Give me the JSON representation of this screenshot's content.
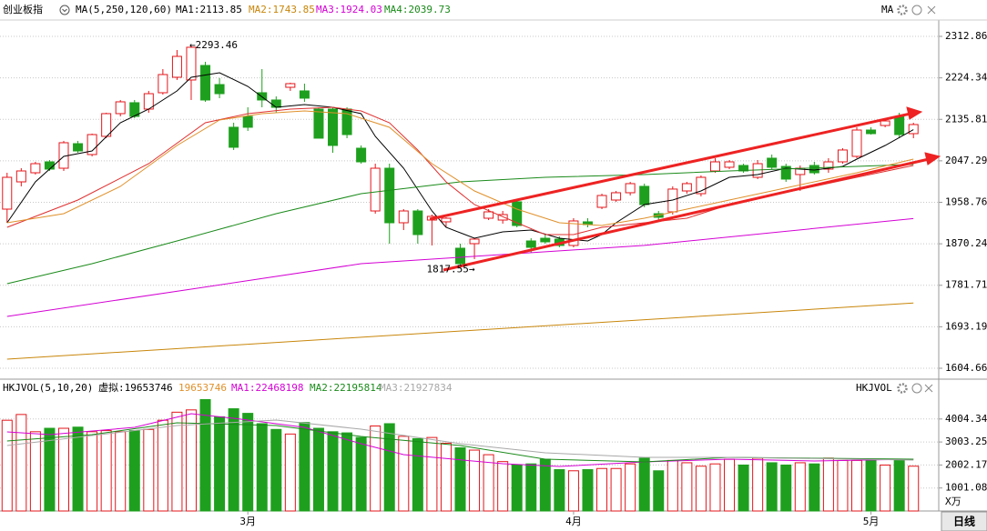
{
  "header": {
    "title": "创业板指",
    "indicator": "MA(5,250,120,60)",
    "right_label": "MA",
    "timeframe": "日线"
  },
  "chart_data": [
    {
      "type": "candlestick",
      "categories": [
        null,
        null,
        null,
        null,
        null,
        null,
        null,
        null,
        null,
        null,
        null,
        null,
        null,
        null,
        null,
        null,
        null,
        "3月",
        null,
        null,
        null,
        null,
        null,
        null,
        null,
        null,
        null,
        null,
        null,
        null,
        null,
        null,
        null,
        null,
        null,
        null,
        null,
        null,
        null,
        null,
        "4月",
        null,
        null,
        null,
        null,
        null,
        null,
        null,
        null,
        null,
        null,
        null,
        null,
        null,
        null,
        null,
        null,
        null,
        null,
        null,
        null,
        "5月",
        null,
        null,
        null
      ],
      "open": [
        1944.2,
        2002.4,
        2021.8,
        2045.1,
        2031.5,
        2083.9,
        2060.7,
        2099.5,
        2148.0,
        2171.3,
        2157.7,
        2192.6,
        2225.6,
        2219.8,
        2250.8,
        2210.0,
        2118.9,
        2142.1,
        2192.6,
        2177.1,
        2204.2,
        2196.5,
        2157.7,
        2157.7,
        2157.7,
        2074.2,
        1940.3,
        2031.5,
        1915.1,
        1940.3,
        1920.9,
        1917.1,
        1860.8,
        1870.5,
        1924.8,
        1920.9,
        1959.8,
        1876.3,
        1882.1,
        1880.2,
        1866.7,
        1917.1,
        1948.1,
        1963.6,
        1979.2,
        1992.8,
        1934.5,
        1938.4,
        1983.0,
        1977.2,
        2025.7,
        2033.5,
        2037.4,
        2012.1,
        2052.9,
        2035.4,
        2018.0,
        2037.4,
        2029.6,
        2045.1,
        2056.8,
        2113.0,
        2122.7,
        2142.1,
        2105.3
      ],
      "high": [
        2021.8,
        2031.5,
        2045.1,
        2049.0,
        2089.8,
        2089.8,
        2105.3,
        2149.9,
        2177.1,
        2177.1,
        2196.5,
        2243.0,
        2283.8,
        2293.46,
        2258.6,
        2224.0,
        2128.6,
        2161.5,
        2243.0,
        2184.8,
        2214.0,
        2212.0,
        2161.5,
        2161.5,
        2161.5,
        2080.1,
        2041.2,
        2041.2,
        1944.2,
        1944.2,
        1932.6,
        1926.8,
        1870.5,
        1882.1,
        1944.2,
        1940.3,
        1963.6,
        1882.1,
        1889.9,
        1886.0,
        1924.8,
        1924.8,
        1977.2,
        1983.0,
        2002.4,
        1998.6,
        1940.3,
        1992.8,
        2002.4,
        2016.0,
        2052.9,
        2049.0,
        2041.2,
        2049.0,
        2060.7,
        2041.2,
        2037.4,
        2045.1,
        2052.9,
        2074.2,
        2118.9,
        2118.9,
        2138.3,
        2149.9,
        2128.6
      ],
      "low": [
        1915.1,
        1992.8,
        2018.0,
        2025.7,
        2025.7,
        2064.5,
        2056.8,
        2095.6,
        2142.1,
        2138.3,
        2149.9,
        2188.7,
        2219.8,
        2177.1,
        2173.2,
        2181.0,
        2070.4,
        2111.1,
        2161.5,
        2149.9,
        2196.5,
        2173.2,
        2095.6,
        2064.5,
        2095.6,
        2041.2,
        1934.5,
        1870.5,
        1899.6,
        1870.5,
        1866.7,
        1905.4,
        1817.55,
        1837.5,
        1920.9,
        1913.2,
        1905.4,
        1851.1,
        1870.5,
        1862.7,
        1862.7,
        1905.4,
        1944.2,
        1959.8,
        1973.3,
        1948.1,
        1920.9,
        1932.6,
        1977.2,
        1971.4,
        2021.8,
        2029.6,
        2021.8,
        2008.3,
        2029.6,
        2002.4,
        1983.0,
        2018.0,
        2021.8,
        2041.2,
        2052.9,
        2103.3,
        2118.9,
        2095.6,
        2095.6
      ],
      "close": [
        2012.1,
        2025.7,
        2041.2,
        2029.6,
        2085.9,
        2068.4,
        2103.3,
        2148.0,
        2173.2,
        2142.1,
        2190.6,
        2231.4,
        2270.2,
        2289.6,
        2177.1,
        2190.6,
        2076.2,
        2118.9,
        2177.1,
        2161.5,
        2212.0,
        2181.0,
        2095.6,
        2080.1,
        2103.3,
        2045.1,
        2031.5,
        1915.1,
        1940.3,
        1889.9,
        1928.7,
        1924.8,
        1827.8,
        1880.2,
        1938.4,
        1932.6,
        1909.3,
        1862.7,
        1874.4,
        1866.7,
        1919.0,
        1911.2,
        1973.3,
        1979.2,
        1998.6,
        1953.9,
        1926.8,
        1987.0,
        1998.6,
        2012.1,
        2045.1,
        2045.1,
        2025.7,
        2041.2,
        2033.5,
        2008.3,
        2031.5,
        2021.8,
        2045.1,
        2070.4,
        2113.0,
        2105.3,
        2132.4,
        2103.3,
        2124.7
      ],
      "up_color": "#e4161b",
      "down_color": "#1ea01e",
      "annotations": [
        "←2293.46",
        "1817.55→"
      ],
      "series": [
        {
          "name": "MA1:2113.85",
          "color": "#000000",
          "x": [
            0,
            2,
            4,
            6,
            8,
            10,
            12,
            13,
            15,
            17,
            19,
            21,
            23,
            25,
            26,
            28,
            30,
            31,
            33,
            35,
            37,
            39,
            41,
            42,
            43,
            45,
            47,
            49,
            51,
            53,
            55,
            57,
            59,
            60,
            62,
            64
          ],
          "values": [
            1915.1,
            2002.4,
            2056.8,
            2068.4,
            2128.6,
            2157.7,
            2196.5,
            2225.6,
            2235.3,
            2206.2,
            2161.5,
            2167.4,
            2161.5,
            2148.0,
            2099.5,
            2031.5,
            1940.3,
            1905.4,
            1882.1,
            1895.7,
            1899.6,
            1882.1,
            1876.3,
            1889.9,
            1915.1,
            1953.9,
            1963.6,
            1983.0,
            2012.1,
            2018.0,
            2031.5,
            2027.7,
            2035.4,
            2051.0,
            2080.1,
            2113.85
          ]
        },
        {
          "name": "MA2:1743.85",
          "color": "#c8860a",
          "x": [
            0,
            64
          ],
          "values": [
            1624.1,
            1743.85
          ]
        },
        {
          "name": "MA3:1924.03",
          "color": "#d400d4",
          "x": [
            0,
            13,
            25,
            45,
            64
          ],
          "values": [
            1715.3,
            1773.5,
            1827.8,
            1866.7,
            1924.03
          ]
        },
        {
          "name": "MA4:2039.73",
          "color": "#1a8a1a",
          "x": [
            0,
            6,
            12,
            19,
            25,
            32,
            38,
            45,
            51,
            64
          ],
          "values": [
            1785.1,
            1827.8,
            1876.3,
            1934.5,
            1977.2,
            2002.4,
            2012.1,
            2018.0,
            2025.7,
            2039.73
          ]
        },
        {
          "color": "#e03030",
          "x": [
            0,
            5,
            10,
            14,
            17,
            20,
            23,
            25,
            27,
            29,
            31,
            33,
            36,
            38,
            40,
            42,
            45,
            48,
            51,
            54,
            57,
            60,
            64
          ],
          "values": [
            1905.4,
            1963.6,
            2041.2,
            2128.6,
            2148.0,
            2157.7,
            2161.5,
            2153.8,
            2128.6,
            2070.4,
            2002.4,
            1953.9,
            1915.1,
            1889.9,
            1889.9,
            1905.4,
            1915.1,
            1924.8,
            1953.9,
            1973.3,
            1992.8,
            2012.1,
            2037.4
          ]
        },
        {
          "color": "#e0902a",
          "x": [
            0,
            4,
            8,
            12,
            15,
            18,
            21,
            24,
            27,
            30,
            33,
            36,
            39,
            42,
            45,
            48,
            51,
            54,
            57,
            60,
            64
          ],
          "values": [
            1915.1,
            1934.5,
            1992.8,
            2080.1,
            2134.4,
            2148.0,
            2153.8,
            2148.0,
            2118.9,
            2041.2,
            1983.0,
            1944.2,
            1915.1,
            1909.3,
            1924.8,
            1944.2,
            1963.6,
            1983.0,
            2002.4,
            2021.8,
            2051.0
          ]
        }
      ],
      "ylim": [
        1583.3,
        2347.8
      ],
      "yticks": [
        2312.86,
        2224.34,
        2135.81,
        2047.29,
        1958.76,
        1870.24,
        1781.71,
        1693.19,
        1604.66
      ],
      "grid": true
    },
    {
      "type": "bar",
      "title": "HKJVOL(5,10,20)",
      "right_label": "HKJVOL",
      "virtual_label": "虚拟:19653746",
      "virtual_value": "19653746",
      "y_unit": "X万",
      "values": [
        3950,
        4200,
        3450,
        3600,
        3600,
        3650,
        3450,
        3500,
        3450,
        3500,
        3550,
        3950,
        4300,
        4400,
        4850,
        4100,
        4450,
        4250,
        3800,
        3550,
        3350,
        3850,
        3600,
        3450,
        3400,
        3200,
        3700,
        3800,
        3250,
        3150,
        3200,
        2950,
        2750,
        2650,
        2450,
        2150,
        2000,
        2050,
        2250,
        1800,
        1750,
        1800,
        1850,
        1850,
        2050,
        2300,
        1750,
        2200,
        2100,
        1950,
        2050,
        2250,
        2000,
        2300,
        2100,
        2000,
        2100,
        2050,
        2300,
        2200,
        2200,
        2250,
        2000,
        2250,
        1950
      ],
      "series": [
        {
          "name": "MA1:22468198",
          "color": "#d400d4",
          "x": [
            0,
            3,
            9,
            13,
            16,
            21,
            25,
            28,
            35,
            39,
            45,
            51,
            57,
            64
          ],
          "values": [
            3443,
            3324,
            3640,
            4234,
            4036,
            3640,
            2928,
            2453,
            2058,
            1939,
            2137,
            2255,
            2176,
            2255
          ]
        },
        {
          "name": "MA2:22195814",
          "color": "#1a8a1a",
          "x": [
            0,
            6,
            12,
            19,
            25,
            32,
            38,
            45,
            51,
            64
          ],
          "values": [
            3047,
            3324,
            3838,
            3720,
            3245,
            2849,
            2255,
            2137,
            2335,
            2255
          ]
        },
        {
          "name": "MA3:21927834",
          "color": "#a8a8a8",
          "x": [
            0,
            12,
            19,
            25,
            32,
            38,
            45,
            51,
            64
          ],
          "values": [
            2849,
            3720,
            3957,
            3561,
            2928,
            2532,
            2335,
            2335,
            2216
          ]
        }
      ],
      "ylim": [
        0,
        4907
      ],
      "yticks": [
        1001.08,
        2002.17,
        3003.25,
        4004.34
      ],
      "grid": true
    }
  ]
}
